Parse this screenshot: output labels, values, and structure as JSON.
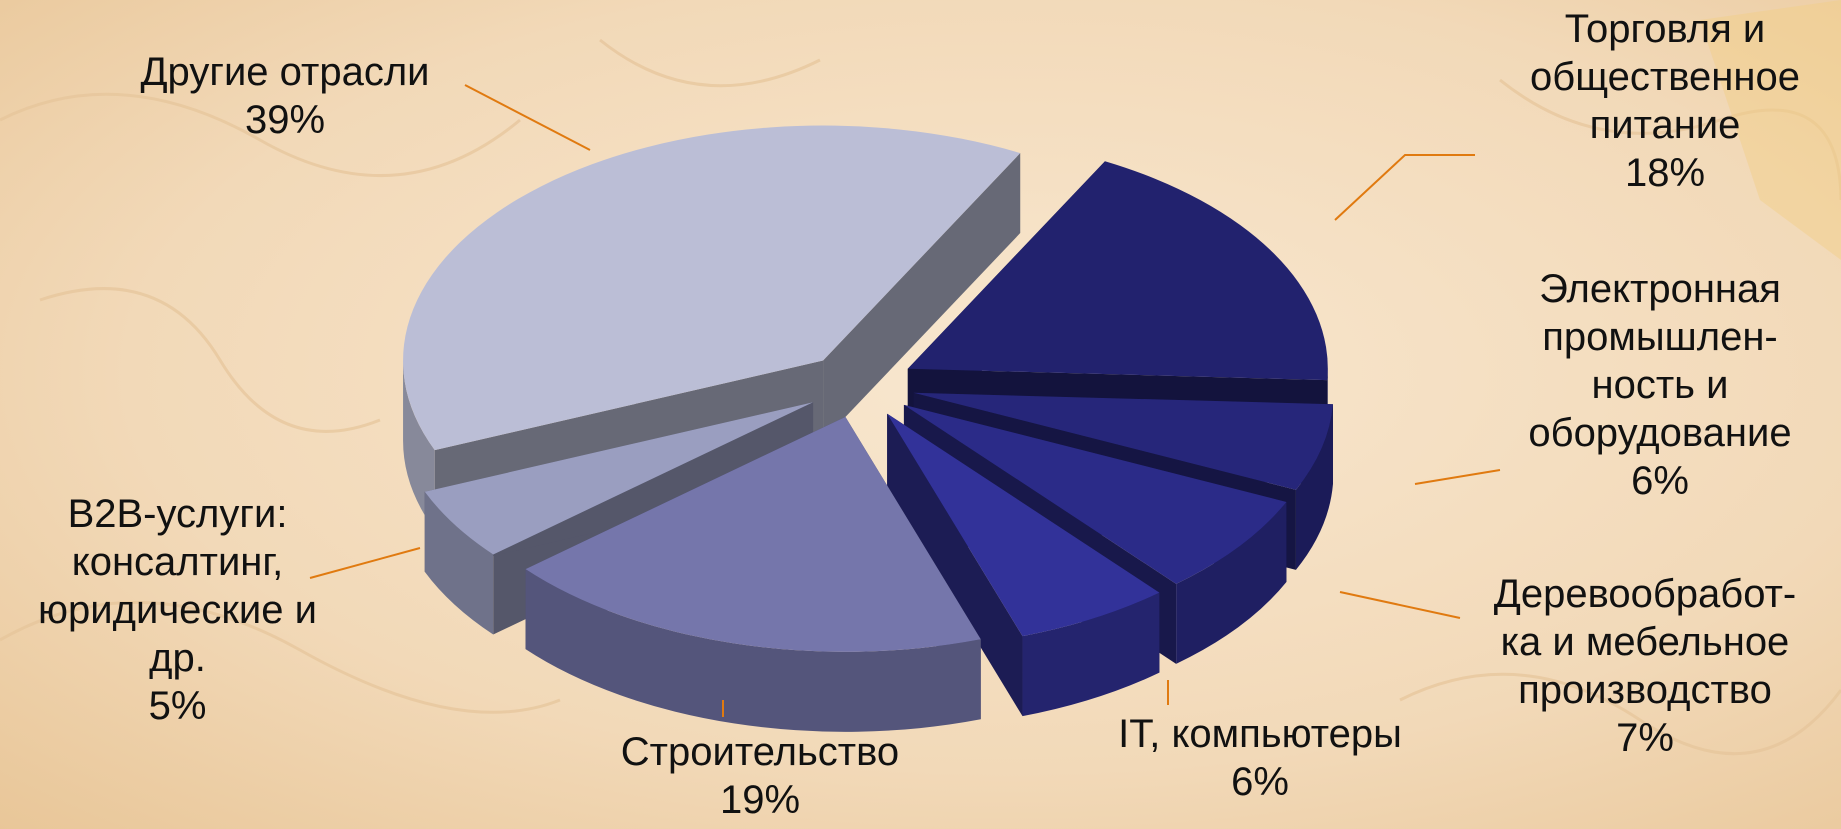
{
  "colors": {
    "leader_line": "#e07a10",
    "background_light": "#f6e3c8",
    "background_dark": "#e9c9a0"
  },
  "chart_data": {
    "type": "pie",
    "title": "",
    "style": "3d-exploded",
    "slices": [
      {
        "label": "Торговля и\nобщественное\nпитание",
        "value": 18,
        "value_label": "18%",
        "color": "#22226e"
      },
      {
        "label": "Электронная\nпромышлен-\nность и\nоборудование",
        "value": 6,
        "value_label": "6%",
        "color": "#26267a"
      },
      {
        "label": "Деревообработ-\nка и мебельное\nпроизводство",
        "value": 7,
        "value_label": "7%",
        "color": "#2b2b88"
      },
      {
        "label": "IT, компьютеры",
        "value": 6,
        "value_label": "6%",
        "color": "#323299"
      },
      {
        "label": "Строительство",
        "value": 19,
        "value_label": "19%",
        "color": "#7576ab"
      },
      {
        "label": "B2B-услуги:\nконсалтинг,\nюридические и\nдр.",
        "value": 5,
        "value_label": "5%",
        "color": "#9a9ec0"
      },
      {
        "label": "Другие отрасли",
        "value": 39,
        "value_label": "39%",
        "color": "#bbbed6"
      }
    ]
  }
}
